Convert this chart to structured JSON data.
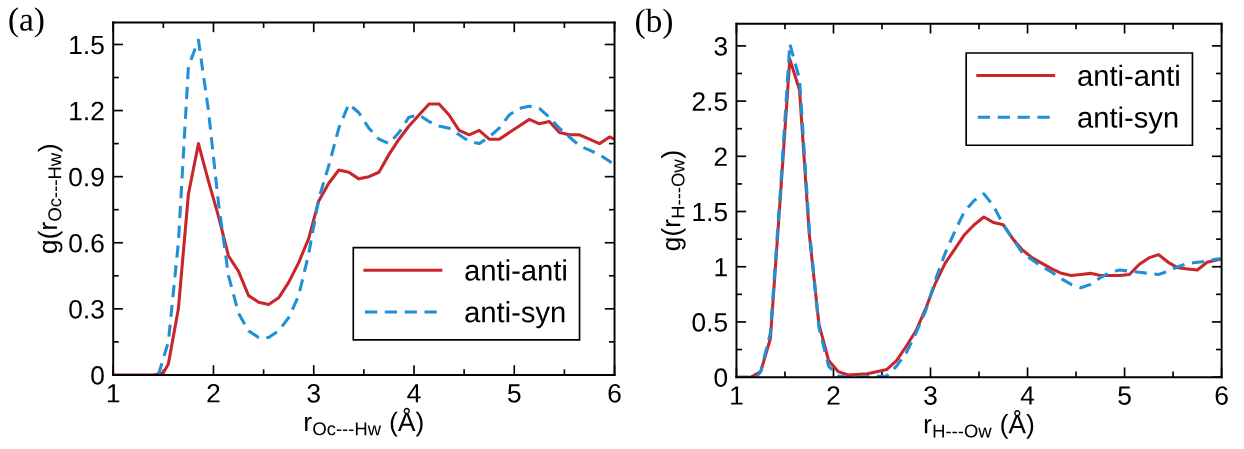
{
  "chart_data": [
    {
      "type": "line",
      "annotations": [
        "(a)"
      ],
      "xlabel": "r$_{Oc---Hw}$ (Å)",
      "ylabel": "g(r$_{Oc---Hw}$)",
      "xlim": [
        1,
        6
      ],
      "ylim": [
        0,
        1.6
      ],
      "xticks": [
        1,
        2,
        3,
        4,
        5,
        6
      ],
      "yticks": [
        0,
        0.3,
        0.6,
        0.9,
        1.2,
        1.5
      ],
      "legend": "bottom right",
      "grid": false,
      "series": [
        {
          "name": "anti-anti",
          "color": "#c8262a",
          "line_style": "solid",
          "x": [
            1.0,
            1.4,
            1.5,
            1.55,
            1.65,
            1.75,
            1.85,
            1.95,
            2.05,
            2.15,
            2.25,
            2.35,
            2.45,
            2.55,
            2.65,
            2.75,
            2.85,
            2.95,
            3.05,
            3.15,
            3.25,
            3.35,
            3.45,
            3.55,
            3.65,
            3.75,
            3.85,
            3.95,
            4.05,
            4.15,
            4.25,
            4.35,
            4.45,
            4.55,
            4.65,
            4.75,
            4.85,
            4.95,
            5.05,
            5.15,
            5.25,
            5.35,
            5.45,
            5.55,
            5.65,
            5.75,
            5.85,
            5.95,
            6.0
          ],
          "values": [
            0,
            0,
            0.01,
            0.05,
            0.3,
            0.82,
            1.05,
            0.88,
            0.72,
            0.54,
            0.47,
            0.36,
            0.33,
            0.32,
            0.35,
            0.42,
            0.51,
            0.62,
            0.79,
            0.87,
            0.93,
            0.92,
            0.89,
            0.9,
            0.92,
            1.0,
            1.07,
            1.13,
            1.18,
            1.23,
            1.23,
            1.18,
            1.11,
            1.09,
            1.11,
            1.07,
            1.07,
            1.1,
            1.13,
            1.16,
            1.14,
            1.15,
            1.1,
            1.09,
            1.09,
            1.07,
            1.05,
            1.08,
            1.07
          ]
        },
        {
          "name": "anti-syn",
          "color": "#1f8fd6",
          "line_style": "dashed",
          "x": [
            1.45,
            1.55,
            1.65,
            1.75,
            1.85,
            1.95,
            2.05,
            2.15,
            2.25,
            2.35,
            2.45,
            2.55,
            2.65,
            2.75,
            2.85,
            2.95,
            3.05,
            3.15,
            3.25,
            3.35,
            3.45,
            3.55,
            3.65,
            3.75,
            3.85,
            3.95,
            4.05,
            4.15,
            4.25,
            4.35,
            4.45,
            4.55,
            4.65,
            4.75,
            4.85,
            4.95,
            5.05,
            5.15,
            5.25,
            5.35,
            5.45,
            5.55,
            5.65,
            5.75,
            5.85,
            5.95,
            6.0
          ],
          "values": [
            0,
            0.15,
            0.6,
            1.4,
            1.52,
            1.2,
            0.78,
            0.45,
            0.28,
            0.2,
            0.17,
            0.17,
            0.2,
            0.26,
            0.36,
            0.55,
            0.8,
            0.95,
            1.12,
            1.23,
            1.19,
            1.12,
            1.07,
            1.05,
            1.1,
            1.17,
            1.18,
            1.15,
            1.13,
            1.12,
            1.09,
            1.06,
            1.05,
            1.08,
            1.12,
            1.18,
            1.21,
            1.22,
            1.21,
            1.17,
            1.12,
            1.08,
            1.04,
            1.02,
            1.0,
            0.97,
            0.95
          ]
        }
      ]
    },
    {
      "type": "line",
      "annotations": [
        "(b)"
      ],
      "xlabel": "r$_{H---Ow}$ (Å)",
      "ylabel": "g(r$_{H---Ow}$)",
      "xlim": [
        1,
        6
      ],
      "ylim": [
        0,
        3.2
      ],
      "xticks": [
        1,
        2,
        3,
        4,
        5,
        6
      ],
      "yticks": [
        0,
        0.5,
        1,
        1.5,
        2,
        2.5,
        3
      ],
      "legend": "top right",
      "grid": false,
      "series": [
        {
          "name": "anti-anti",
          "color": "#c8262a",
          "line_style": "solid",
          "x": [
            1.0,
            1.15,
            1.25,
            1.35,
            1.45,
            1.55,
            1.65,
            1.75,
            1.85,
            1.95,
            2.05,
            2.15,
            2.35,
            2.55,
            2.65,
            2.75,
            2.85,
            2.95,
            3.05,
            3.15,
            3.25,
            3.35,
            3.45,
            3.55,
            3.65,
            3.75,
            3.85,
            3.95,
            4.05,
            4.15,
            4.25,
            4.35,
            4.45,
            4.55,
            4.65,
            4.75,
            4.85,
            4.95,
            5.05,
            5.15,
            5.25,
            5.35,
            5.45,
            5.55,
            5.65,
            5.75,
            5.85,
            5.95,
            6.0
          ],
          "values": [
            0,
            0,
            0.05,
            0.35,
            1.6,
            2.88,
            2.6,
            1.3,
            0.48,
            0.15,
            0.05,
            0.02,
            0.03,
            0.07,
            0.15,
            0.28,
            0.42,
            0.62,
            0.85,
            1.03,
            1.16,
            1.29,
            1.38,
            1.45,
            1.4,
            1.38,
            1.25,
            1.15,
            1.08,
            1.03,
            0.98,
            0.94,
            0.92,
            0.93,
            0.94,
            0.92,
            0.92,
            0.92,
            0.93,
            1.02,
            1.08,
            1.11,
            1.04,
            0.99,
            0.98,
            0.97,
            1.04,
            1.06,
            1.07
          ]
        },
        {
          "name": "anti-syn",
          "color": "#1f8fd6",
          "line_style": "dashed",
          "x": [
            1.0,
            1.2,
            1.25,
            1.35,
            1.45,
            1.55,
            1.65,
            1.75,
            1.85,
            1.95,
            2.05,
            2.15,
            2.55,
            2.65,
            2.75,
            2.85,
            2.95,
            3.05,
            3.15,
            3.25,
            3.35,
            3.45,
            3.55,
            3.65,
            3.75,
            3.85,
            3.95,
            4.05,
            4.15,
            4.25,
            4.35,
            4.45,
            4.55,
            4.65,
            4.75,
            4.85,
            4.95,
            5.05,
            5.15,
            5.25,
            5.35,
            5.45,
            5.55,
            5.65,
            5.75,
            5.85,
            5.95,
            6.0
          ],
          "values": [
            0,
            0,
            0.05,
            0.4,
            1.65,
            3.02,
            2.7,
            1.35,
            0.45,
            0.1,
            0.01,
            0,
            0.01,
            0.1,
            0.22,
            0.4,
            0.6,
            0.88,
            1.12,
            1.32,
            1.5,
            1.6,
            1.66,
            1.55,
            1.38,
            1.25,
            1.12,
            1.06,
            1.0,
            0.95,
            0.89,
            0.84,
            0.81,
            0.84,
            0.9,
            0.95,
            0.97,
            0.96,
            0.95,
            0.94,
            0.93,
            0.96,
            1.0,
            1.03,
            1.04,
            1.05,
            1.07,
            1.07
          ]
        }
      ]
    }
  ]
}
